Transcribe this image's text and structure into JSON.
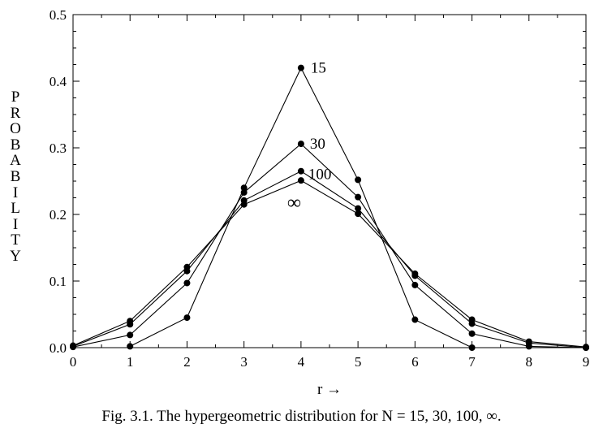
{
  "caption": "Fig. 3.1.  The hypergeometric distribution for N = 15, 30, 100, ∞.",
  "chart_data": {
    "type": "line",
    "title": "",
    "xlabel": "r →",
    "ylabel": "PROBABILITY",
    "xlim": [
      0,
      9
    ],
    "ylim": [
      0,
      0.5
    ],
    "x_ticks": [
      "0",
      "1",
      "2",
      "3",
      "4",
      "5",
      "6",
      "7",
      "8",
      "9"
    ],
    "y_ticks": [
      "0.0",
      "0.1",
      "0.2",
      "0.3",
      "0.4",
      "0.5"
    ],
    "grid": false,
    "legend": "none",
    "series": [
      {
        "name": "15",
        "x": [
          1,
          2,
          3,
          4,
          5,
          6,
          7
        ],
        "values": [
          0.002,
          0.045,
          0.24,
          0.42,
          0.252,
          0.042,
          0.0
        ]
      },
      {
        "name": "30",
        "x": [
          0,
          1,
          2,
          3,
          4,
          5,
          6,
          7,
          8,
          9
        ],
        "values": [
          0.001,
          0.019,
          0.097,
          0.233,
          0.306,
          0.226,
          0.094,
          0.021,
          0.002,
          0.0
        ]
      },
      {
        "name": "100",
        "x": [
          0,
          1,
          2,
          3,
          4,
          5,
          6,
          7,
          8,
          9
        ],
        "values": [
          0.002,
          0.035,
          0.115,
          0.221,
          0.265,
          0.209,
          0.108,
          0.036,
          0.007,
          0.0
        ]
      },
      {
        "name": "∞",
        "x": [
          0,
          1,
          2,
          3,
          4,
          5,
          6,
          7,
          8,
          9
        ],
        "values": [
          0.003,
          0.04,
          0.121,
          0.215,
          0.251,
          0.201,
          0.111,
          0.042,
          0.009,
          0.001
        ]
      }
    ]
  }
}
